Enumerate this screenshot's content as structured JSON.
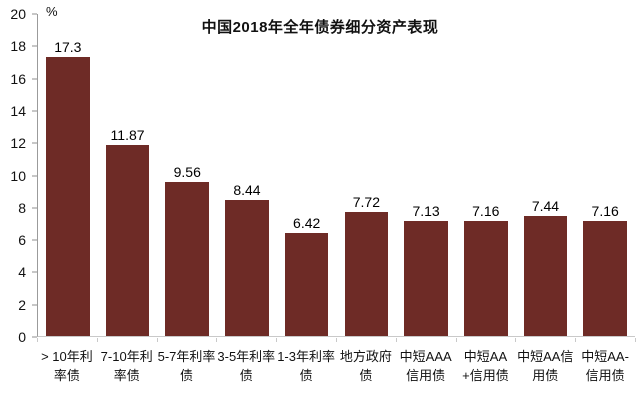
{
  "chart_data": {
    "type": "bar",
    "title": "中国2018年全年债券细分资产表现",
    "unit_label": "%",
    "categories": [
      "> 10年利率债",
      "7-10年利率债",
      "5-7年利率债",
      "3-5年利率债",
      "1-3年利率债",
      "地方政府债",
      "中短AAA信用债",
      "中短AA+信用债",
      "中短AA信用债",
      "中短AA-信用债"
    ],
    "values": [
      17.3,
      11.87,
      9.56,
      8.44,
      6.42,
      7.72,
      7.13,
      7.16,
      7.44,
      7.16
    ],
    "value_labels": [
      "17.3",
      "11.87",
      "9.56",
      "8.44",
      "6.42",
      "7.72",
      "7.13",
      "7.16",
      "7.44",
      "7.16"
    ],
    "ylabel": "",
    "xlabel": "",
    "ylim": [
      0,
      20
    ],
    "yticks": [
      0,
      2,
      4,
      6,
      8,
      10,
      12,
      14,
      16,
      18,
      20
    ],
    "bar_color": "#6e2b26",
    "grid": false,
    "legend": "none"
  }
}
